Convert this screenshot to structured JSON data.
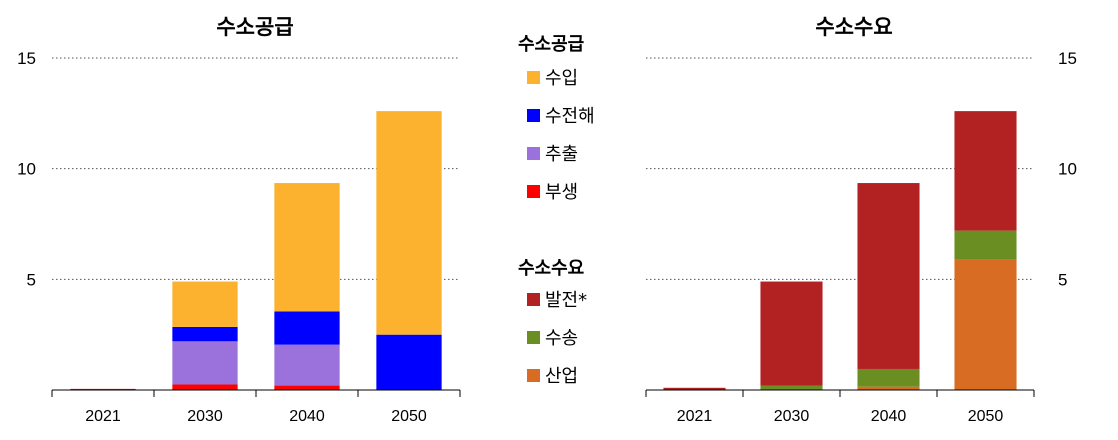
{
  "chart_data": [
    {
      "type": "bar",
      "stacked": true,
      "title": "수소공급",
      "categories": [
        "2021",
        "2030",
        "2040",
        "2050"
      ],
      "ylim": [
        0,
        15
      ],
      "yticks": [
        5,
        10,
        15
      ],
      "grid": true,
      "series": [
        {
          "name": "부생",
          "color": "#ff0000",
          "values": [
            0.05,
            0.25,
            0.2,
            0
          ]
        },
        {
          "name": "추출",
          "color": "#9b72dc",
          "values": [
            0,
            1.95,
            1.85,
            0
          ]
        },
        {
          "name": "수전해",
          "color": "#0000ff",
          "values": [
            0,
            0.65,
            1.5,
            2.5
          ]
        },
        {
          "name": "수입",
          "color": "#fcb22f",
          "values": [
            0,
            2.05,
            5.8,
            10.1
          ]
        }
      ]
    },
    {
      "type": "bar",
      "stacked": true,
      "title": "수소수요",
      "categories": [
        "2021",
        "2030",
        "2040",
        "2050"
      ],
      "ylim": [
        0,
        15
      ],
      "yticks": [
        5,
        10,
        15
      ],
      "grid": true,
      "series": [
        {
          "name": "산업",
          "color": "#d86c23",
          "values": [
            0,
            0,
            0.15,
            5.9
          ]
        },
        {
          "name": "수송",
          "color": "#6b8e23",
          "values": [
            0,
            0.2,
            0.8,
            1.3
          ]
        },
        {
          "name": "발전*",
          "color": "#b22222",
          "values": [
            0.1,
            4.7,
            8.4,
            5.4
          ]
        }
      ]
    }
  ],
  "legend": {
    "supply": {
      "title": "수소공급",
      "items": [
        {
          "label": "수입",
          "color": "#fcb22f"
        },
        {
          "label": "수전해",
          "color": "#0000ff"
        },
        {
          "label": "추출",
          "color": "#9b72dc"
        },
        {
          "label": "부생",
          "color": "#ff0000"
        }
      ]
    },
    "demand": {
      "title": "수소수요",
      "items": [
        {
          "label": "발전*",
          "color": "#b22222"
        },
        {
          "label": "수송",
          "color": "#6b8e23"
        },
        {
          "label": "산업",
          "color": "#d86c23"
        }
      ]
    }
  }
}
